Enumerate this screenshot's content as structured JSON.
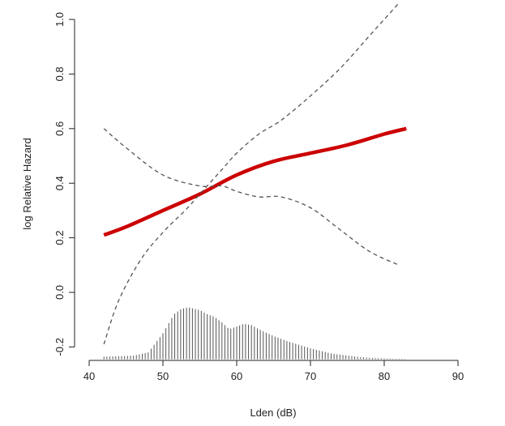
{
  "chart_data": {
    "type": "line",
    "title": "",
    "xlabel": "Lden (dB)",
    "ylabel": "log Relative Hazard",
    "xlim": [
      40,
      90
    ],
    "ylim": [
      -0.22,
      1.0
    ],
    "xticks": [
      40,
      50,
      60,
      70,
      80,
      90
    ],
    "yticks": [
      -0.2,
      0.0,
      0.2,
      0.4,
      0.6,
      0.8,
      1.0
    ],
    "xtick_labels": [
      "40",
      "50",
      "60",
      "70",
      "80",
      "90"
    ],
    "ytick_labels": [
      "-0.2",
      "0.0",
      "0.2",
      "0.4",
      "0.6",
      "0.8",
      "1.0"
    ],
    "grid": false,
    "legend": "none",
    "colors": {
      "estimate": "#cc0000",
      "ci": "#555555",
      "histogram": "#555555",
      "axis": "#222222"
    },
    "series": [
      {
        "role": "estimate",
        "style": "solid",
        "x": [
          42,
          45,
          50,
          55,
          60,
          65,
          70,
          75,
          80,
          83
        ],
        "y": [
          0.21,
          0.24,
          0.3,
          0.36,
          0.43,
          0.48,
          0.51,
          0.54,
          0.58,
          0.6
        ]
      },
      {
        "role": "upper-ci",
        "style": "dashed",
        "x": [
          42,
          45,
          50,
          55,
          58,
          60,
          63,
          66,
          70,
          74,
          78,
          82
        ],
        "y": [
          0.6,
          0.53,
          0.43,
          0.39,
          0.39,
          0.37,
          0.35,
          0.35,
          0.31,
          0.23,
          0.15,
          0.1
        ]
      },
      {
        "role": "lower-ci",
        "style": "dashed",
        "x": [
          42,
          44,
          47,
          50,
          53,
          55,
          58,
          60,
          63,
          66,
          70,
          74,
          78,
          82
        ],
        "y": [
          -0.19,
          -0.03,
          0.12,
          0.22,
          0.3,
          0.36,
          0.45,
          0.51,
          0.58,
          0.63,
          0.72,
          0.82,
          0.94,
          1.06
        ]
      }
    ],
    "histogram": {
      "baseline": -0.245,
      "bin_width": 0.4,
      "anchors_x": [
        42,
        46,
        48,
        50,
        51.5,
        52.5,
        53.5,
        55,
        56,
        57,
        58,
        59,
        60,
        61,
        62,
        63,
        65,
        67,
        70,
        73,
        77,
        80,
        83
      ],
      "anchors_y": [
        -0.236,
        -0.232,
        -0.22,
        -0.15,
        -0.08,
        -0.06,
        -0.055,
        -0.065,
        -0.08,
        -0.09,
        -0.11,
        -0.135,
        -0.125,
        -0.115,
        -0.12,
        -0.135,
        -0.16,
        -0.18,
        -0.205,
        -0.225,
        -0.238,
        -0.242,
        -0.244
      ]
    }
  }
}
